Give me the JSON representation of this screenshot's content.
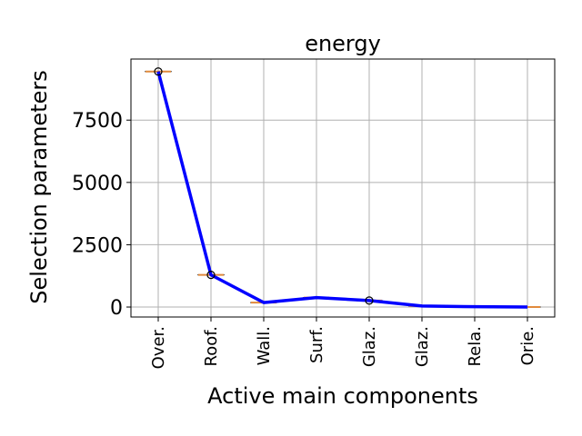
{
  "chart_data": {
    "type": "line",
    "title": "energy",
    "xlabel": "Active main components",
    "ylabel": "Selection parameters",
    "categories": [
      "Over.",
      "Roof.",
      "Wall.",
      "Surf.",
      "Glaz.",
      "Glaz.",
      "Rela.",
      "Orie."
    ],
    "series": [
      {
        "values": [
          9450,
          1290,
          180,
          380,
          260,
          40,
          15,
          0
        ],
        "color": "#0000ff"
      }
    ],
    "ylim": [
      -400,
      9950
    ],
    "yticks": [
      0,
      2500,
      5000,
      7500
    ],
    "ytick_labels": [
      "0",
      "2500",
      "5000",
      "7500"
    ],
    "grid": true,
    "median_color": "#e08a3c",
    "outlier_markers_at": [
      0,
      1,
      4
    ]
  }
}
